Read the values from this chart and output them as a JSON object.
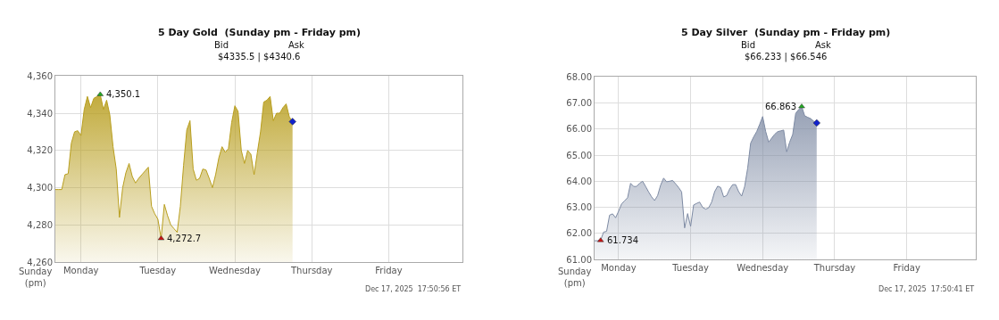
{
  "chart_data": [
    {
      "type": "area",
      "title": "5 Day Gold  (Sunday pm - Friday pm)",
      "annotations": [
        "Bid",
        "Ask",
        "$4335.5 | $4340.6",
        "Sunday\n(pm)",
        "Dec 17, 2025  17:50:56 ET",
        "4,350.1",
        "4,272.7"
      ],
      "categories": [
        null,
        null,
        null,
        null,
        null,
        null,
        null,
        null,
        "Monday",
        null,
        null,
        null,
        null,
        null,
        null,
        null,
        null,
        null,
        null,
        null,
        null,
        null,
        null,
        null,
        null,
        null,
        null,
        null,
        null,
        null,
        null,
        null,
        "Tuesday",
        null,
        null,
        null,
        null,
        null,
        null,
        null,
        null,
        null,
        null,
        null,
        null,
        null,
        null,
        null,
        null,
        null,
        null,
        null,
        null,
        null,
        null,
        null,
        "Wednesday",
        null,
        null,
        null,
        null,
        null,
        null,
        null,
        null,
        null,
        null,
        null,
        null,
        null,
        null,
        null,
        null,
        null,
        null,
        null,
        null,
        null,
        null,
        null,
        "Thursday",
        null,
        null,
        null,
        null,
        null,
        null,
        null,
        null,
        null,
        null,
        null,
        null,
        null,
        null,
        null,
        null,
        null,
        null,
        null,
        null,
        null,
        null,
        null,
        "Friday",
        null,
        null,
        null,
        null,
        null,
        null,
        null,
        null,
        null,
        null,
        null,
        null,
        null,
        null,
        null,
        null,
        null,
        null,
        null,
        null,
        null,
        null,
        null
      ],
      "ylim": [
        4260,
        4360
      ],
      "yticks": [
        {
          "value": 4260,
          "label": "4,260"
        },
        {
          "value": 4280,
          "label": "4,280"
        },
        {
          "value": 4300,
          "label": "4,300"
        },
        {
          "value": 4320,
          "label": "4,320"
        },
        {
          "value": 4340,
          "label": "4,340"
        },
        {
          "value": 4360,
          "label": "4,360"
        }
      ],
      "grid": true,
      "series": [
        {
          "color": "#b89e1e",
          "values": [
            4299,
            4299,
            4299,
            4307,
            4307.5,
            4324,
            4330,
            4330.6,
            4328,
            4342,
            4349,
            4343,
            4348,
            4349,
            4350.1,
            4342,
            4347,
            4339,
            4322,
            4310,
            4284,
            4300,
            4308,
            4313,
            4306,
            4302.5,
            4305,
            4307,
            4309,
            4311,
            4290,
            4286,
            4283,
            4272.7,
            4291,
            4285,
            4280,
            4278,
            4276,
            4290,
            4312,
            4331,
            4336,
            4310,
            4304,
            4305,
            4310,
            4309.5,
            4305,
            4300,
            4307,
            4316,
            4322,
            4319,
            4321,
            4335,
            4344,
            4341,
            4320,
            4313,
            4320,
            4318,
            4307,
            4318.7,
            4330,
            4346,
            4347,
            4349,
            4336,
            4340,
            4340,
            4343,
            4345,
            4338,
            4335.5,
            null,
            null,
            null,
            null,
            null,
            null,
            null,
            null,
            null,
            null,
            null,
            null,
            null,
            null,
            null,
            null,
            null,
            null,
            null,
            null,
            null,
            null,
            null,
            null,
            null,
            null,
            null,
            null,
            null,
            null,
            null,
            null,
            null,
            null,
            null,
            null,
            null,
            null,
            null,
            null,
            null,
            null,
            null,
            null,
            null,
            null,
            null,
            null,
            null,
            null,
            null,
            null,
            null
          ]
        },
        {
          "type": "scatter",
          "marker": "triangle",
          "color": "#22aa22",
          "values": [
            null,
            null,
            null,
            null,
            null,
            null,
            null,
            null,
            null,
            null,
            null,
            null,
            null,
            null,
            4350.1,
            null,
            null,
            null,
            null,
            null,
            null,
            null,
            null,
            null,
            null,
            null,
            null,
            null,
            null,
            null,
            null,
            null,
            null,
            null,
            null,
            null,
            null,
            null,
            null,
            null,
            null,
            null,
            null,
            null,
            null,
            null,
            null,
            null,
            null,
            null,
            null,
            null,
            null,
            null,
            null,
            null,
            null,
            null,
            null,
            null,
            null,
            null,
            null,
            null,
            null,
            null,
            null,
            null,
            null,
            null,
            null,
            null,
            null,
            null,
            null,
            null,
            null,
            null,
            null,
            null,
            null,
            null,
            null,
            null,
            null,
            null,
            null,
            null,
            null,
            null,
            null,
            null,
            null,
            null,
            null,
            null,
            null,
            null,
            null,
            null,
            null,
            null,
            null,
            null,
            null,
            null,
            null,
            null,
            null,
            null,
            null,
            null,
            null,
            null,
            null,
            null,
            null,
            null,
            null,
            null,
            null,
            null,
            null,
            null,
            null,
            null,
            null,
            null
          ]
        },
        {
          "type": "scatter",
          "marker": "triangle",
          "color": "#cc1111",
          "values": [
            null,
            null,
            null,
            null,
            null,
            null,
            null,
            null,
            null,
            null,
            null,
            null,
            null,
            null,
            null,
            null,
            null,
            null,
            null,
            null,
            null,
            null,
            null,
            null,
            null,
            null,
            null,
            null,
            null,
            null,
            null,
            null,
            null,
            4272.7,
            null,
            null,
            null,
            null,
            null,
            null,
            null,
            null,
            null,
            null,
            null,
            null,
            null,
            null,
            null,
            null,
            null,
            null,
            null,
            null,
            null,
            null,
            null,
            null,
            null,
            null,
            null,
            null,
            null,
            null,
            null,
            null,
            null,
            null,
            null,
            null,
            null,
            null,
            null,
            null,
            null,
            null,
            null,
            null,
            null,
            null,
            null,
            null,
            null,
            null,
            null,
            null,
            null,
            null,
            null,
            null,
            null,
            null,
            null,
            null,
            null,
            null,
            null,
            null,
            null,
            null,
            null,
            null,
            null,
            null,
            null,
            null,
            null,
            null,
            null,
            null,
            null,
            null,
            null,
            null,
            null,
            null,
            null,
            null,
            null,
            null,
            null,
            null,
            null,
            null,
            null,
            null,
            null,
            null
          ]
        },
        {
          "type": "scatter",
          "marker": "diamond",
          "color": "#1122cc",
          "values": [
            null,
            null,
            null,
            null,
            null,
            null,
            null,
            null,
            null,
            null,
            null,
            null,
            null,
            null,
            null,
            null,
            null,
            null,
            null,
            null,
            null,
            null,
            null,
            null,
            null,
            null,
            null,
            null,
            null,
            null,
            null,
            null,
            null,
            null,
            null,
            null,
            null,
            null,
            null,
            null,
            null,
            null,
            null,
            null,
            null,
            null,
            null,
            null,
            null,
            null,
            null,
            null,
            null,
            null,
            null,
            null,
            null,
            null,
            null,
            null,
            null,
            null,
            null,
            null,
            null,
            null,
            null,
            null,
            null,
            null,
            null,
            null,
            null,
            null,
            4335.5,
            null,
            null,
            null,
            null,
            null,
            null,
            null,
            null,
            null,
            null,
            null,
            null,
            null,
            null,
            null,
            null,
            null,
            null,
            null,
            null,
            null,
            null,
            null,
            null,
            null,
            null,
            null,
            null,
            null,
            null,
            null,
            null,
            null,
            null,
            null,
            null,
            null,
            null,
            null,
            null,
            null,
            null,
            null,
            null,
            null,
            null,
            null,
            null,
            null,
            null,
            null,
            null,
            null
          ]
        }
      ]
    },
    {
      "type": "area",
      "title": "5 Day Silver  (Sunday pm - Friday pm)",
      "annotations": [
        "Bid",
        "Ask",
        "$66.233 | $66.546",
        "Sunday\n(pm)",
        "Dec 17, 2025  17:50:41 ET",
        "66.863",
        "61.734"
      ],
      "categories": [
        null,
        null,
        null,
        null,
        null,
        null,
        null,
        null,
        "Monday",
        null,
        null,
        null,
        null,
        null,
        null,
        null,
        null,
        null,
        null,
        null,
        null,
        null,
        null,
        null,
        null,
        null,
        null,
        null,
        null,
        null,
        null,
        null,
        "Tuesday",
        null,
        null,
        null,
        null,
        null,
        null,
        null,
        null,
        null,
        null,
        null,
        null,
        null,
        null,
        null,
        null,
        null,
        null,
        null,
        null,
        null,
        null,
        null,
        "Wednesday",
        null,
        null,
        null,
        null,
        null,
        null,
        null,
        null,
        null,
        null,
        null,
        null,
        null,
        null,
        null,
        null,
        null,
        null,
        null,
        null,
        null,
        null,
        null,
        "Thursday",
        null,
        null,
        null,
        null,
        null,
        null,
        null,
        null,
        null,
        null,
        null,
        null,
        null,
        null,
        null,
        null,
        null,
        null,
        null,
        null,
        null,
        null,
        null,
        "Friday",
        null,
        null,
        null,
        null,
        null,
        null,
        null,
        null,
        null,
        null,
        null,
        null,
        null,
        null,
        null,
        null,
        null,
        null,
        null,
        null,
        null,
        null,
        null
      ],
      "ylim": [
        61,
        68
      ],
      "yticks": [
        {
          "value": 61,
          "label": "61.00"
        },
        {
          "value": 62,
          "label": "62.00"
        },
        {
          "value": 63,
          "label": "63.00"
        },
        {
          "value": 64,
          "label": "64.00"
        },
        {
          "value": 65,
          "label": "65.00"
        },
        {
          "value": 66,
          "label": "66.00"
        },
        {
          "value": 67,
          "label": "67.00"
        },
        {
          "value": 68,
          "label": "68.00"
        }
      ],
      "grid": true,
      "series": [
        {
          "color": "#7d8aa3",
          "values": [
            61.72,
            61.72,
            61.734,
            62.05,
            62.08,
            62.7,
            62.75,
            62.6,
            62.85,
            63.13,
            63.25,
            63.37,
            63.92,
            63.8,
            63.8,
            63.92,
            64.0,
            63.8,
            63.59,
            63.4,
            63.26,
            63.45,
            63.85,
            64.12,
            63.98,
            64.0,
            64.03,
            63.9,
            63.76,
            63.59,
            62.21,
            62.76,
            62.27,
            63.09,
            63.15,
            63.2,
            63.0,
            62.93,
            62.98,
            63.2,
            63.6,
            63.81,
            63.76,
            63.4,
            63.45,
            63.7,
            63.87,
            63.87,
            63.6,
            63.43,
            63.8,
            64.5,
            65.46,
            65.7,
            65.9,
            66.18,
            66.48,
            65.91,
            65.5,
            65.65,
            65.8,
            65.9,
            65.93,
            65.96,
            65.13,
            65.5,
            65.79,
            66.6,
            66.75,
            66.863,
            66.51,
            66.45,
            66.4,
            66.3,
            66.233,
            null,
            null,
            null,
            null,
            null,
            null,
            null,
            null,
            null,
            null,
            null,
            null,
            null,
            null,
            null,
            null,
            null,
            null,
            null,
            null,
            null,
            null,
            null,
            null,
            null,
            null,
            null,
            null,
            null,
            null,
            null,
            null,
            null,
            null,
            null,
            null,
            null,
            null,
            null,
            null,
            null,
            null,
            null,
            null,
            null,
            null,
            null,
            null,
            null,
            null,
            null,
            null,
            null
          ]
        },
        {
          "type": "scatter",
          "marker": "triangle",
          "color": "#22aa22",
          "values": [
            null,
            null,
            null,
            null,
            null,
            null,
            null,
            null,
            null,
            null,
            null,
            null,
            null,
            null,
            null,
            null,
            null,
            null,
            null,
            null,
            null,
            null,
            null,
            null,
            null,
            null,
            null,
            null,
            null,
            null,
            null,
            null,
            null,
            null,
            null,
            null,
            null,
            null,
            null,
            null,
            null,
            null,
            null,
            null,
            null,
            null,
            null,
            null,
            null,
            null,
            null,
            null,
            null,
            null,
            null,
            null,
            null,
            null,
            null,
            null,
            null,
            null,
            null,
            null,
            null,
            null,
            null,
            null,
            null,
            66.863,
            null,
            null,
            null,
            null,
            null,
            null,
            null,
            null,
            null,
            null,
            null,
            null,
            null,
            null,
            null,
            null,
            null,
            null,
            null,
            null,
            null,
            null,
            null,
            null,
            null,
            null,
            null,
            null,
            null,
            null,
            null,
            null,
            null,
            null,
            null,
            null,
            null,
            null,
            null,
            null,
            null,
            null,
            null,
            null,
            null,
            null,
            null,
            null,
            null,
            null,
            null,
            null,
            null,
            null,
            null,
            null,
            null,
            null
          ]
        },
        {
          "type": "scatter",
          "marker": "triangle",
          "color": "#cc1111",
          "values": [
            null,
            null,
            61.734,
            null,
            null,
            null,
            null,
            null,
            null,
            null,
            null,
            null,
            null,
            null,
            null,
            null,
            null,
            null,
            null,
            null,
            null,
            null,
            null,
            null,
            null,
            null,
            null,
            null,
            null,
            null,
            null,
            null,
            null,
            null,
            null,
            null,
            null,
            null,
            null,
            null,
            null,
            null,
            null,
            null,
            null,
            null,
            null,
            null,
            null,
            null,
            null,
            null,
            null,
            null,
            null,
            null,
            null,
            null,
            null,
            null,
            null,
            null,
            null,
            null,
            null,
            null,
            null,
            null,
            null,
            null,
            null,
            null,
            null,
            null,
            null,
            null,
            null,
            null,
            null,
            null,
            null,
            null,
            null,
            null,
            null,
            null,
            null,
            null,
            null,
            null,
            null,
            null,
            null,
            null,
            null,
            null,
            null,
            null,
            null,
            null,
            null,
            null,
            null,
            null,
            null,
            null,
            null,
            null,
            null,
            null,
            null,
            null,
            null,
            null,
            null,
            null,
            null,
            null,
            null,
            null,
            null,
            null,
            null,
            null,
            null,
            null,
            null,
            null
          ]
        },
        {
          "type": "scatter",
          "marker": "diamond",
          "color": "#1122cc",
          "values": [
            null,
            null,
            null,
            null,
            null,
            null,
            null,
            null,
            null,
            null,
            null,
            null,
            null,
            null,
            null,
            null,
            null,
            null,
            null,
            null,
            null,
            null,
            null,
            null,
            null,
            null,
            null,
            null,
            null,
            null,
            null,
            null,
            null,
            null,
            null,
            null,
            null,
            null,
            null,
            null,
            null,
            null,
            null,
            null,
            null,
            null,
            null,
            null,
            null,
            null,
            null,
            null,
            null,
            null,
            null,
            null,
            null,
            null,
            null,
            null,
            null,
            null,
            null,
            null,
            null,
            null,
            null,
            null,
            null,
            null,
            null,
            null,
            null,
            null,
            66.233,
            null,
            null,
            null,
            null,
            null,
            null,
            null,
            null,
            null,
            null,
            null,
            null,
            null,
            null,
            null,
            null,
            null,
            null,
            null,
            null,
            null,
            null,
            null,
            null,
            null,
            null,
            null,
            null,
            null,
            null,
            null,
            null,
            null,
            null,
            null,
            null,
            null,
            null,
            null,
            null,
            null,
            null,
            null,
            null,
            null,
            null,
            null,
            null,
            null,
            null,
            null,
            null,
            null
          ]
        }
      ]
    }
  ]
}
